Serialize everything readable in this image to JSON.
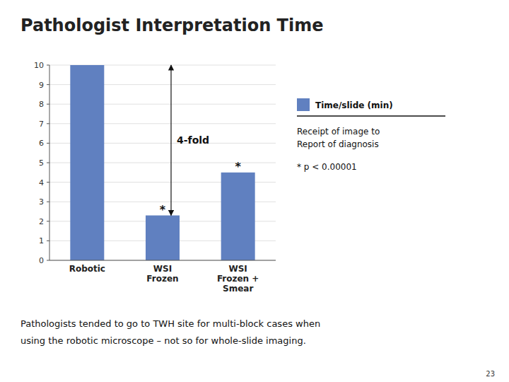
{
  "chart_data": {
    "type": "bar",
    "title": "Pathologist Interpretation Time",
    "categories": [
      "Robotic",
      "WSI\nFrozen",
      "WSI\nFrozen +\nSmear"
    ],
    "series": [
      {
        "name": "Time/slide (min)",
        "color": "#6080c0",
        "values": [
          10,
          2.3,
          4.5
        ]
      }
    ],
    "ylim": [
      0,
      10
    ],
    "yticks": [
      0,
      1,
      2,
      3,
      4,
      5,
      6,
      7,
      8,
      9,
      10
    ],
    "grid": true,
    "legend": "right",
    "annotations": [
      {
        "text": "*",
        "category": 1
      },
      {
        "text": "*",
        "category": 2
      },
      {
        "text": "4-fold",
        "category": 1,
        "from": 2.3,
        "to": 10
      }
    ],
    "notes": [
      "Receipt of image to",
      "Report of diagnosis",
      "* p < 0.00001"
    ],
    "footnotes": [
      "Pathologists tended to go to TWH site for multi-block cases when",
      "using the robotic microscope – not so for whole-slide imaging."
    ],
    "slide_number": "23"
  }
}
